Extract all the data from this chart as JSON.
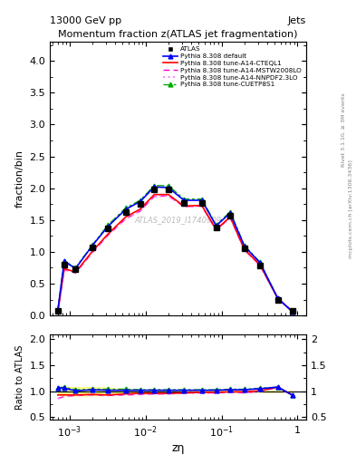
{
  "title": "Momentum fraction z(ATLAS jet fragmentation)",
  "top_left_label": "13000 GeV pp",
  "top_right_label": "Jets",
  "xlabel": "zη",
  "ylabel_main": "fraction/bin",
  "ylabel_ratio": "Ratio to ATLAS",
  "watermark": "ATLAS_2019_I1740909",
  "right_label1": "Rivet 3.1.10, ≥ 3M events",
  "right_label2": "mcplots.cern.ch [arXiv:1306.3436]",
  "xlim": [
    0.00055,
    1.3
  ],
  "ylim_main": [
    0,
    4.3
  ],
  "ylim_ratio": [
    0.45,
    2.1
  ],
  "atlas_x": [
    0.0007,
    0.00085,
    0.0012,
    0.002,
    0.0032,
    0.0055,
    0.0085,
    0.013,
    0.02,
    0.032,
    0.055,
    0.085,
    0.13,
    0.2,
    0.32,
    0.55,
    0.85
  ],
  "atlas_values": [
    0.07,
    0.8,
    0.73,
    1.07,
    1.37,
    1.63,
    1.75,
    1.98,
    1.98,
    1.77,
    1.77,
    1.38,
    1.57,
    1.06,
    0.79,
    0.25,
    0.07
  ],
  "default_x": [
    0.0007,
    0.00085,
    0.0012,
    0.002,
    0.0032,
    0.0055,
    0.0085,
    0.013,
    0.02,
    0.032,
    0.055,
    0.085,
    0.13,
    0.2,
    0.32,
    0.55,
    0.85
  ],
  "default_y": [
    0.075,
    0.85,
    0.74,
    1.1,
    1.4,
    1.67,
    1.79,
    2.02,
    2.01,
    1.81,
    1.81,
    1.41,
    1.61,
    1.09,
    0.83,
    0.27,
    0.065
  ],
  "cteql1_x": [
    0.0007,
    0.00085,
    0.0012,
    0.002,
    0.0032,
    0.0055,
    0.0085,
    0.013,
    0.02,
    0.032,
    0.055,
    0.085,
    0.13,
    0.2,
    0.32,
    0.55,
    0.85
  ],
  "cteql1_y": [
    0.065,
    0.74,
    0.68,
    1.01,
    1.28,
    1.55,
    1.67,
    1.9,
    1.9,
    1.72,
    1.73,
    1.35,
    1.55,
    1.04,
    0.8,
    0.27,
    0.065
  ],
  "mstw_x": [
    0.0007,
    0.00085,
    0.0012,
    0.002,
    0.0032,
    0.0055,
    0.0085,
    0.013,
    0.02,
    0.032,
    0.055,
    0.085,
    0.13,
    0.2,
    0.32,
    0.55,
    0.85
  ],
  "mstw_y": [
    0.06,
    0.72,
    0.67,
    0.99,
    1.26,
    1.52,
    1.64,
    1.87,
    1.88,
    1.71,
    1.72,
    1.34,
    1.54,
    1.03,
    0.79,
    0.27,
    0.065
  ],
  "nnpdf_x": [
    0.0007,
    0.00085,
    0.0012,
    0.002,
    0.0032,
    0.0055,
    0.0085,
    0.013,
    0.02,
    0.032,
    0.055,
    0.085,
    0.13,
    0.2,
    0.32,
    0.55,
    0.85
  ],
  "nnpdf_y": [
    0.06,
    0.72,
    0.67,
    0.99,
    1.26,
    1.52,
    1.64,
    1.87,
    1.88,
    1.71,
    1.72,
    1.34,
    1.54,
    1.03,
    0.79,
    0.27,
    0.065
  ],
  "cuetp_x": [
    0.0007,
    0.00085,
    0.0012,
    0.002,
    0.0032,
    0.0055,
    0.0085,
    0.013,
    0.02,
    0.032,
    0.055,
    0.085,
    0.13,
    0.2,
    0.32,
    0.55,
    0.85
  ],
  "cuetp_y": [
    0.075,
    0.86,
    0.75,
    1.11,
    1.42,
    1.69,
    1.81,
    2.04,
    2.04,
    1.83,
    1.83,
    1.42,
    1.63,
    1.1,
    0.84,
    0.27,
    0.065
  ],
  "ratio_x": [
    0.0007,
    0.00085,
    0.0012,
    0.002,
    0.0032,
    0.0055,
    0.0085,
    0.013,
    0.02,
    0.032,
    0.055,
    0.085,
    0.13,
    0.2,
    0.32,
    0.55,
    0.85
  ],
  "ratio_default_y": [
    1.07,
    1.06,
    1.01,
    1.03,
    1.02,
    1.02,
    1.02,
    1.02,
    1.02,
    1.02,
    1.02,
    1.02,
    1.03,
    1.03,
    1.05,
    1.08,
    0.93
  ],
  "ratio_cteql1_y": [
    0.93,
    0.93,
    0.93,
    0.94,
    0.93,
    0.95,
    0.96,
    0.96,
    0.96,
    0.97,
    0.98,
    0.98,
    0.99,
    0.99,
    1.01,
    1.08,
    0.93
  ],
  "ratio_mstw_y": [
    0.86,
    0.9,
    0.92,
    0.93,
    0.92,
    0.93,
    0.94,
    0.95,
    0.95,
    0.97,
    0.97,
    0.97,
    0.98,
    0.97,
    1.0,
    1.08,
    0.93
  ],
  "ratio_nnpdf_y": [
    0.86,
    0.9,
    0.92,
    0.93,
    0.92,
    0.93,
    0.94,
    0.95,
    0.95,
    0.97,
    0.97,
    0.97,
    0.98,
    0.97,
    1.0,
    1.08,
    0.93
  ],
  "ratio_cuetp_y": [
    1.07,
    1.08,
    1.03,
    1.04,
    1.04,
    1.04,
    1.03,
    1.03,
    1.03,
    1.03,
    1.03,
    1.03,
    1.04,
    1.04,
    1.06,
    1.08,
    0.93
  ],
  "band_lo": [
    0.92,
    0.92,
    0.92,
    0.92,
    0.93,
    0.96,
    0.97,
    0.99,
    0.99,
    0.99,
    0.99,
    0.99,
    0.99,
    0.99,
    0.99,
    0.99,
    0.99
  ],
  "band_hi": [
    1.08,
    1.08,
    1.08,
    1.08,
    1.07,
    1.04,
    1.03,
    1.01,
    1.01,
    1.01,
    1.01,
    1.01,
    1.01,
    1.01,
    1.01,
    1.01,
    1.01
  ],
  "color_default": "#0000ff",
  "color_cteql1": "#ff0000",
  "color_mstw": "#ff00cc",
  "color_nnpdf": "#ff88ff",
  "color_cuetp": "#00aa00",
  "color_atlas": "#000000",
  "band_color": "#ffff88"
}
